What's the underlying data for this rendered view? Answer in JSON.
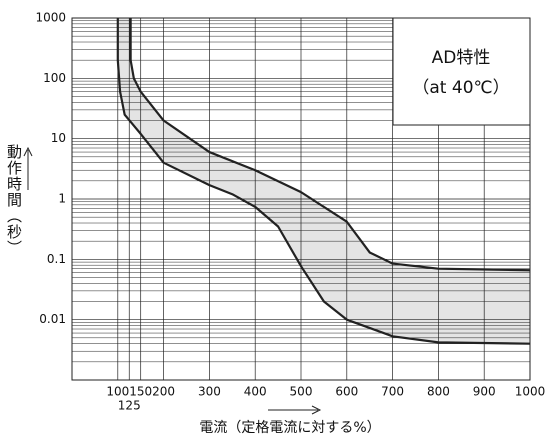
{
  "chart_data": {
    "type": "line",
    "x_label": "電流（定格電流に対する%）",
    "y_label": "動作時間（秒）",
    "annotations": [
      "AD特性",
      "（at 40℃）"
    ],
    "log_y": true,
    "grid": true,
    "band_color": "#e4e4e4",
    "xlim": [
      0,
      1000
    ],
    "xticks": [
      100,
      125,
      150,
      200,
      300,
      400,
      500,
      600,
      700,
      800,
      900,
      1000
    ],
    "ylim": [
      0.001,
      1000
    ],
    "yticks": [
      1000,
      100,
      10,
      1,
      0.1,
      0.01
    ],
    "series": [
      {
        "name": null,
        "color": "#222222",
        "x": [
          128,
          128,
          135,
          150,
          200,
          300,
          400,
          500,
          600,
          650,
          700,
          800,
          1000
        ],
        "values": [
          1000,
          200,
          100,
          60,
          20,
          6,
          3,
          1.3,
          0.42,
          0.13,
          0.085,
          0.07,
          0.066
        ]
      },
      {
        "name": null,
        "color": "#222222",
        "x": [
          100,
          100,
          105,
          115,
          150,
          200,
          300,
          350,
          400,
          450,
          500,
          550,
          600,
          700,
          800,
          1000
        ],
        "values": [
          1000,
          200,
          60,
          25,
          12,
          4,
          1.7,
          1.2,
          0.74,
          0.35,
          0.077,
          0.02,
          0.01,
          0.0053,
          0.0042,
          0.004
        ]
      }
    ]
  }
}
